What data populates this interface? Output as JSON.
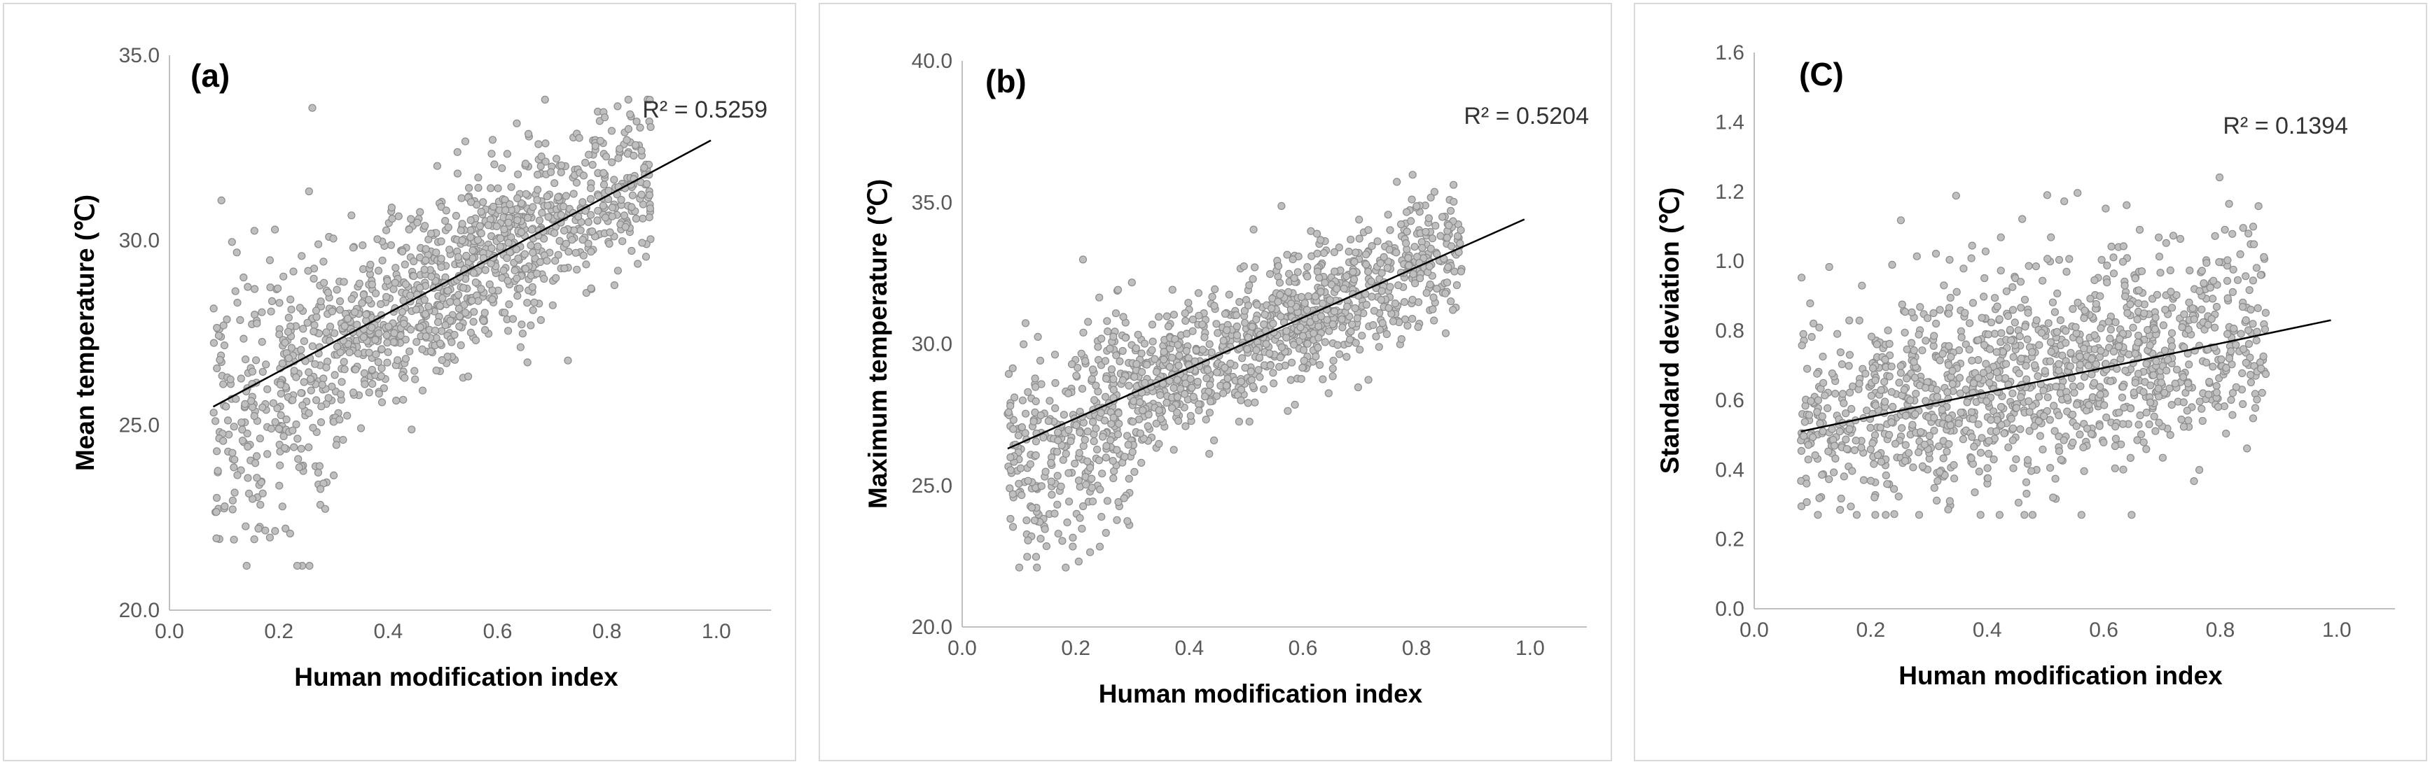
{
  "chart_data": [
    {
      "type": "scatter",
      "panel_label": "(a)",
      "xlabel": "Human modification index",
      "ylabel": "Mean temperature (℃)",
      "xlim": [
        0.0,
        1.1
      ],
      "ylim": [
        20.0,
        35.0
      ],
      "x_ticks": [
        0.0,
        0.2,
        0.4,
        0.6,
        0.8,
        1.0
      ],
      "x_tick_labels": [
        "0.0",
        "0.2",
        "0.4",
        "0.6",
        "0.8",
        "1.0"
      ],
      "y_ticks": [
        20,
        25,
        30,
        35
      ],
      "y_tick_labels": [
        "20.0",
        "25.0",
        "30.0",
        "35.0"
      ],
      "trendline": {
        "x": [
          0.08,
          0.99
        ],
        "y": [
          25.5,
          32.7
        ]
      },
      "r2_label": "R² = 0.5259",
      "n_points": 1300,
      "point_color": "#bfbfbf",
      "point_edge": "#8c8c8c",
      "line_color": "#000000"
    },
    {
      "type": "scatter",
      "panel_label": "(b)",
      "xlabel": "Human modification index",
      "ylabel": "Maximum temperature (℃)",
      "xlim": [
        0.0,
        1.1
      ],
      "ylim": [
        20.0,
        40.0
      ],
      "x_ticks": [
        0.0,
        0.2,
        0.4,
        0.6,
        0.8,
        1.0
      ],
      "x_tick_labels": [
        "0.0",
        "0.2",
        "0.4",
        "0.6",
        "0.8",
        "1.0"
      ],
      "y_ticks": [
        20,
        25,
        30,
        35,
        40
      ],
      "y_tick_labels": [
        "20.0",
        "25.0",
        "30.0",
        "35.0",
        "40.0"
      ],
      "trendline": {
        "x": [
          0.08,
          0.99
        ],
        "y": [
          26.3,
          34.4
        ]
      },
      "r2_label": "R² = 0.5204",
      "n_points": 1300,
      "point_color": "#bfbfbf",
      "point_edge": "#8c8c8c",
      "line_color": "#000000"
    },
    {
      "type": "scatter",
      "panel_label": "(C)",
      "xlabel": "Human modification index",
      "ylabel": "Standard deviation (℃)",
      "xlim": [
        0.0,
        1.1
      ],
      "ylim": [
        0.0,
        1.6
      ],
      "x_ticks": [
        0.0,
        0.2,
        0.4,
        0.6,
        0.8,
        1.0
      ],
      "x_tick_labels": [
        "0.0",
        "0.2",
        "0.4",
        "0.6",
        "0.8",
        "1.0"
      ],
      "y_ticks": [
        0.0,
        0.2,
        0.4,
        0.6,
        0.8,
        1.0,
        1.2,
        1.4,
        1.6
      ],
      "y_tick_labels": [
        "0.0",
        "0.2",
        "0.4",
        "0.6",
        "0.8",
        "1.0",
        "1.2",
        "1.4",
        "1.6"
      ],
      "trendline": {
        "x": [
          0.08,
          0.99
        ],
        "y": [
          0.51,
          0.83
        ]
      },
      "r2_label": "R² = 0.1394",
      "n_points": 1300,
      "point_color": "#bfbfbf",
      "point_edge": "#8c8c8c",
      "line_color": "#000000"
    }
  ]
}
